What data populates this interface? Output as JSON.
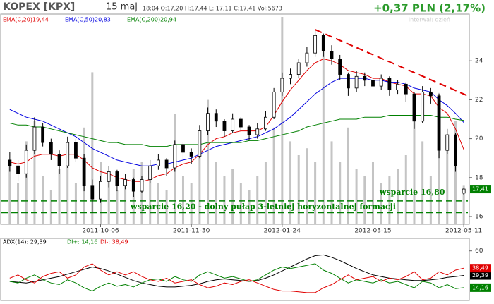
{
  "header": {
    "symbol": "KOPEX [KPX]",
    "date": "15 maj",
    "quote": "18:04  O:17,20  H:17,44  L: 17,11  C:17,41  Vol:5673",
    "change": "+0,37 PLN (2,17%)",
    "interval": "Interwał: dzień"
  },
  "chart_data": [
    {
      "type": "candlestick",
      "categories": [
        null,
        null,
        null,
        null,
        null,
        null,
        null,
        null,
        null,
        null,
        null,
        "2011-10-06",
        null,
        null,
        null,
        null,
        null,
        null,
        null,
        null,
        null,
        null,
        "2011-11-30",
        null,
        null,
        null,
        null,
        null,
        null,
        null,
        null,
        null,
        null,
        "2012-01-24",
        null,
        null,
        null,
        null,
        null,
        null,
        null,
        null,
        null,
        null,
        "2012-03-15",
        null,
        null,
        null,
        null,
        null,
        null,
        null,
        null,
        null,
        null,
        "2012-05-11"
      ],
      "candles": [
        [
          18.9,
          19.3,
          18.3,
          18.6
        ],
        [
          18.6,
          18.9,
          17.8,
          18.2
        ],
        [
          18.2,
          19.7,
          18.0,
          19.4
        ],
        [
          19.4,
          21.1,
          19.2,
          20.6
        ],
        [
          20.6,
          20.8,
          19.6,
          19.8
        ],
        [
          19.8,
          20.0,
          18.9,
          19.2
        ],
        [
          19.2,
          19.4,
          18.2,
          18.6
        ],
        [
          18.6,
          20.1,
          18.5,
          19.8
        ],
        [
          19.8,
          20.0,
          18.8,
          19.0
        ],
        [
          19.0,
          19.2,
          17.3,
          17.6
        ],
        [
          17.6,
          17.9,
          16.2,
          16.9
        ],
        [
          16.9,
          18.1,
          16.7,
          17.8
        ],
        [
          17.8,
          18.6,
          17.5,
          18.3
        ],
        [
          18.3,
          18.4,
          17.3,
          17.6
        ],
        [
          17.6,
          18.2,
          17.4,
          17.9
        ],
        [
          17.9,
          18.0,
          17.0,
          17.3
        ],
        [
          17.3,
          18.1,
          17.2,
          17.9
        ],
        [
          17.9,
          18.9,
          17.7,
          18.6
        ],
        [
          18.6,
          19.2,
          18.4,
          18.9
        ],
        [
          18.9,
          19.0,
          18.1,
          18.5
        ],
        [
          18.5,
          19.9,
          18.3,
          19.7
        ],
        [
          19.7,
          19.8,
          18.9,
          19.3
        ],
        [
          19.3,
          19.5,
          18.7,
          19.1
        ],
        [
          19.1,
          20.7,
          19.0,
          20.4
        ],
        [
          20.4,
          21.6,
          20.2,
          21.3
        ],
        [
          21.3,
          21.5,
          20.6,
          20.9
        ],
        [
          20.9,
          21.0,
          20.1,
          20.4
        ],
        [
          20.4,
          21.3,
          20.3,
          21.0
        ],
        [
          21.0,
          21.1,
          20.4,
          20.6
        ],
        [
          20.6,
          20.7,
          19.9,
          20.2
        ],
        [
          20.2,
          20.8,
          20.0,
          20.5
        ],
        [
          20.5,
          21.4,
          20.4,
          21.1
        ],
        [
          21.1,
          22.6,
          21.0,
          22.4
        ],
        [
          22.4,
          23.4,
          22.2,
          23.1
        ],
        [
          23.1,
          23.6,
          22.8,
          23.3
        ],
        [
          23.3,
          24.1,
          23.1,
          23.9
        ],
        [
          23.9,
          24.7,
          23.7,
          24.4
        ],
        [
          24.4,
          25.6,
          24.2,
          25.3
        ],
        [
          25.3,
          25.4,
          24.2,
          24.5
        ],
        [
          24.5,
          24.8,
          23.8,
          24.1
        ],
        [
          24.1,
          24.3,
          23.0,
          23.3
        ],
        [
          23.3,
          23.4,
          22.2,
          22.6
        ],
        [
          22.6,
          23.5,
          22.4,
          23.2
        ],
        [
          23.2,
          23.4,
          22.7,
          23.0
        ],
        [
          23.0,
          23.2,
          22.4,
          22.7
        ],
        [
          22.7,
          23.3,
          22.5,
          23.1
        ],
        [
          23.1,
          23.2,
          22.2,
          22.5
        ],
        [
          22.5,
          23.0,
          22.3,
          22.8
        ],
        [
          22.8,
          22.9,
          21.9,
          22.3
        ],
        [
          22.3,
          22.4,
          20.5,
          20.9
        ],
        [
          20.9,
          22.7,
          20.8,
          22.4
        ],
        [
          22.4,
          22.6,
          21.8,
          22.2
        ],
        [
          22.2,
          22.3,
          19.0,
          19.4
        ],
        [
          19.4,
          20.5,
          19.2,
          20.2
        ],
        [
          20.2,
          20.3,
          18.3,
          18.6
        ],
        [
          17.2,
          17.44,
          17.11,
          17.41
        ]
      ],
      "volume": [
        9000,
        6000,
        12000,
        15000,
        7000,
        5000,
        8000,
        10000,
        6000,
        14000,
        22000,
        9000,
        7000,
        5000,
        6000,
        8000,
        9000,
        7000,
        6000,
        5000,
        16000,
        7000,
        6000,
        13000,
        18000,
        9000,
        7000,
        8000,
        6000,
        5000,
        7000,
        9000,
        14000,
        30000,
        12000,
        10000,
        11000,
        9000,
        26000,
        12000,
        9000,
        14000,
        8000,
        7000,
        9000,
        6000,
        7000,
        8000,
        10000,
        16000,
        12000,
        7000,
        19000,
        11000,
        15000,
        5673
      ],
      "series": [
        {
          "name": "EMA(C,20)19,44",
          "color": "#e00000",
          "values": [
            18.8,
            18.7,
            18.8,
            19.1,
            19.2,
            19.2,
            19.1,
            19.2,
            19.2,
            18.9,
            18.5,
            18.3,
            18.2,
            18.0,
            17.9,
            17.8,
            17.8,
            17.9,
            18.1,
            18.2,
            18.5,
            18.7,
            18.8,
            19.2,
            19.7,
            20.0,
            20.1,
            20.3,
            20.4,
            20.4,
            20.4,
            20.6,
            21.2,
            21.9,
            22.5,
            23.0,
            23.5,
            23.9,
            24.1,
            24.0,
            23.8,
            23.5,
            23.4,
            23.3,
            23.1,
            23.1,
            22.9,
            22.8,
            22.7,
            22.3,
            22.3,
            22.2,
            21.6,
            21.3,
            20.5,
            19.44
          ]
        },
        {
          "name": "EMA(C,50)20,83",
          "color": "#0000e0",
          "values": [
            21.5,
            21.3,
            21.1,
            21.0,
            20.9,
            20.7,
            20.5,
            20.3,
            20.1,
            19.8,
            19.5,
            19.3,
            19.1,
            18.9,
            18.8,
            18.7,
            18.6,
            18.6,
            18.7,
            18.7,
            18.8,
            18.9,
            19.0,
            19.2,
            19.4,
            19.6,
            19.7,
            19.8,
            19.9,
            20.0,
            20.1,
            20.3,
            20.5,
            20.8,
            21.1,
            21.5,
            21.9,
            22.3,
            22.6,
            22.9,
            23.1,
            23.1,
            23.1,
            23.1,
            23.0,
            23.0,
            22.9,
            22.9,
            22.8,
            22.6,
            22.5,
            22.4,
            22.0,
            21.7,
            21.3,
            20.83
          ]
        },
        {
          "name": "EMA(C,200)20,94",
          "color": "#008000",
          "values": [
            20.8,
            20.7,
            20.7,
            20.6,
            20.6,
            20.5,
            20.4,
            20.3,
            20.2,
            20.1,
            20.0,
            19.9,
            19.8,
            19.8,
            19.7,
            19.7,
            19.7,
            19.6,
            19.6,
            19.6,
            19.7,
            19.7,
            19.7,
            19.7,
            19.8,
            19.8,
            19.8,
            19.8,
            19.8,
            19.9,
            19.9,
            20.0,
            20.1,
            20.2,
            20.3,
            20.4,
            20.6,
            20.7,
            20.8,
            20.9,
            21.0,
            21.0,
            21.0,
            21.1,
            21.1,
            21.1,
            21.2,
            21.2,
            21.2,
            21.2,
            21.2,
            21.2,
            21.1,
            21.1,
            21.0,
            20.94
          ]
        }
      ],
      "last_label": "17,41",
      "last_color": "#008000",
      "supports": [
        {
          "value": 16.8,
          "label": "wsparcie 16,80"
        },
        {
          "value": 16.2,
          "label": "wsparcie 16,20 - dolny pułap 3-letniej horyzontalnej formacji"
        }
      ],
      "support_color": "#008000",
      "trendline": {
        "x": [
          37,
          55.5
        ],
        "y": [
          25.6,
          22.2
        ],
        "color": "#e00000"
      },
      "ylim": [
        15.6,
        26.4
      ],
      "yticks": [
        16,
        18,
        20,
        22,
        24
      ]
    },
    {
      "type": "line",
      "series": [
        {
          "name": "ADX(14): 29,39",
          "color": "#000000",
          "last_label": "29,39",
          "values": [
            22,
            21,
            20,
            22,
            24,
            26,
            28,
            31,
            34,
            37,
            40,
            38,
            35,
            31,
            27,
            23,
            20,
            18,
            16,
            15,
            15,
            16,
            17,
            19,
            22,
            24,
            25,
            24,
            23,
            22,
            23,
            26,
            30,
            35,
            40,
            45,
            50,
            54,
            55,
            52,
            48,
            43,
            38,
            34,
            30,
            28,
            26,
            25,
            24,
            23,
            23,
            24,
            25,
            27,
            28,
            29.39
          ]
        },
        {
          "name": "DI+: 14,16",
          "color": "#008000",
          "last_label": "14,16",
          "values": [
            22,
            20,
            26,
            30,
            24,
            20,
            18,
            24,
            20,
            14,
            10,
            16,
            20,
            16,
            18,
            15,
            20,
            24,
            25,
            22,
            28,
            24,
            22,
            30,
            34,
            30,
            26,
            28,
            25,
            22,
            24,
            30,
            36,
            40,
            38,
            40,
            42,
            44,
            36,
            32,
            26,
            20,
            24,
            22,
            20,
            24,
            20,
            22,
            18,
            14,
            22,
            20,
            14,
            18,
            13,
            14.16
          ]
        },
        {
          "name": "DI-: 38,49",
          "color": "#e00000",
          "last_label": "38,49",
          "values": [
            26,
            30,
            24,
            20,
            28,
            32,
            34,
            26,
            30,
            40,
            44,
            36,
            30,
            34,
            30,
            34,
            28,
            24,
            22,
            26,
            20,
            22,
            24,
            18,
            14,
            16,
            20,
            18,
            22,
            24,
            20,
            16,
            12,
            10,
            10,
            9,
            8,
            8,
            14,
            18,
            24,
            30,
            24,
            26,
            28,
            22,
            26,
            24,
            28,
            34,
            24,
            26,
            34,
            30,
            36,
            38.49
          ]
        }
      ],
      "ylim": [
        0,
        65
      ],
      "yticks": [
        60
      ]
    }
  ]
}
